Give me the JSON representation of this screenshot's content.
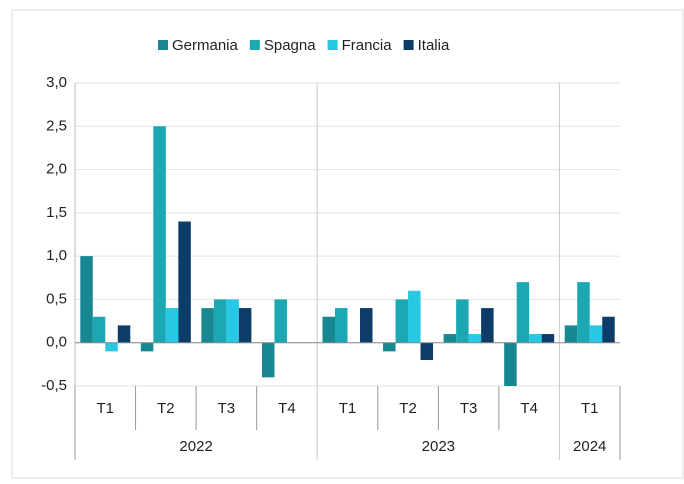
{
  "chart_data": {
    "type": "bar",
    "groups": [
      {
        "label": "2022",
        "categories": [
          "T1",
          "T2",
          "T3",
          "T4"
        ]
      },
      {
        "label": "2023",
        "categories": [
          "T1",
          "T2",
          "T3",
          "T4"
        ]
      },
      {
        "label": "2024",
        "categories": [
          "T1"
        ]
      }
    ],
    "series": [
      {
        "name": "Germania",
        "color": "#178892",
        "values": [
          1.0,
          -0.1,
          0.4,
          -0.4,
          0.3,
          -0.1,
          0.1,
          -0.5,
          0.2
        ]
      },
      {
        "name": "Spagna",
        "color": "#1ba8b3",
        "values": [
          0.3,
          2.5,
          0.5,
          0.5,
          0.4,
          0.5,
          0.5,
          0.7,
          0.7
        ]
      },
      {
        "name": "Francia",
        "color": "#27c8e3",
        "values": [
          -0.1,
          0.4,
          0.5,
          0.0,
          0.0,
          0.6,
          0.1,
          0.1,
          0.2
        ]
      },
      {
        "name": "Italia",
        "color": "#0e3c68",
        "values": [
          0.2,
          1.4,
          0.4,
          0.0,
          0.4,
          -0.2,
          0.4,
          0.1,
          0.3
        ]
      }
    ],
    "ylim": [
      -0.5,
      3.0
    ],
    "yticks": [
      {
        "value": -0.5,
        "label": "-0,5"
      },
      {
        "value": 0,
        "label": "0,0"
      },
      {
        "value": 0.5,
        "label": "0,5"
      },
      {
        "value": 1.0,
        "label": "1,0"
      },
      {
        "value": 1.5,
        "label": "1,5"
      },
      {
        "value": 2.0,
        "label": "2,0"
      },
      {
        "value": 2.5,
        "label": "2,5"
      },
      {
        "value": 3.0,
        "label": "3,0"
      }
    ],
    "grid": true,
    "legend": "top"
  }
}
